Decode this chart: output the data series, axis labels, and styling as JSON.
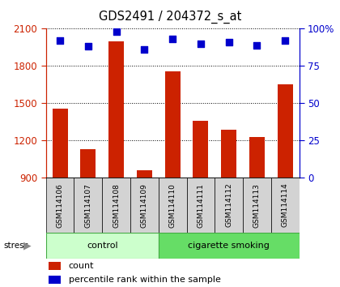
{
  "title": "GDS2491 / 204372_s_at",
  "samples": [
    "GSM114106",
    "GSM114107",
    "GSM114108",
    "GSM114109",
    "GSM114110",
    "GSM114111",
    "GSM114112",
    "GSM114113",
    "GSM114114"
  ],
  "counts": [
    1460,
    1130,
    2000,
    960,
    1760,
    1360,
    1290,
    1230,
    1650
  ],
  "percentiles": [
    92,
    88,
    98,
    86,
    93,
    90,
    91,
    89,
    92
  ],
  "bar_color": "#cc2200",
  "dot_color": "#0000cc",
  "ylim_left": [
    900,
    2100
  ],
  "ylim_right": [
    0,
    100
  ],
  "yticks_left": [
    900,
    1200,
    1500,
    1800,
    2100
  ],
  "yticks_right": [
    0,
    25,
    50,
    75,
    100
  ],
  "right_tick_labels": [
    "0",
    "25",
    "50",
    "75",
    "100%"
  ],
  "left_axis_color": "#cc2200",
  "right_axis_color": "#0000cc",
  "ctrl_color": "#ccffcc",
  "smoke_color": "#66dd66",
  "label_bg": "#d3d3d3"
}
